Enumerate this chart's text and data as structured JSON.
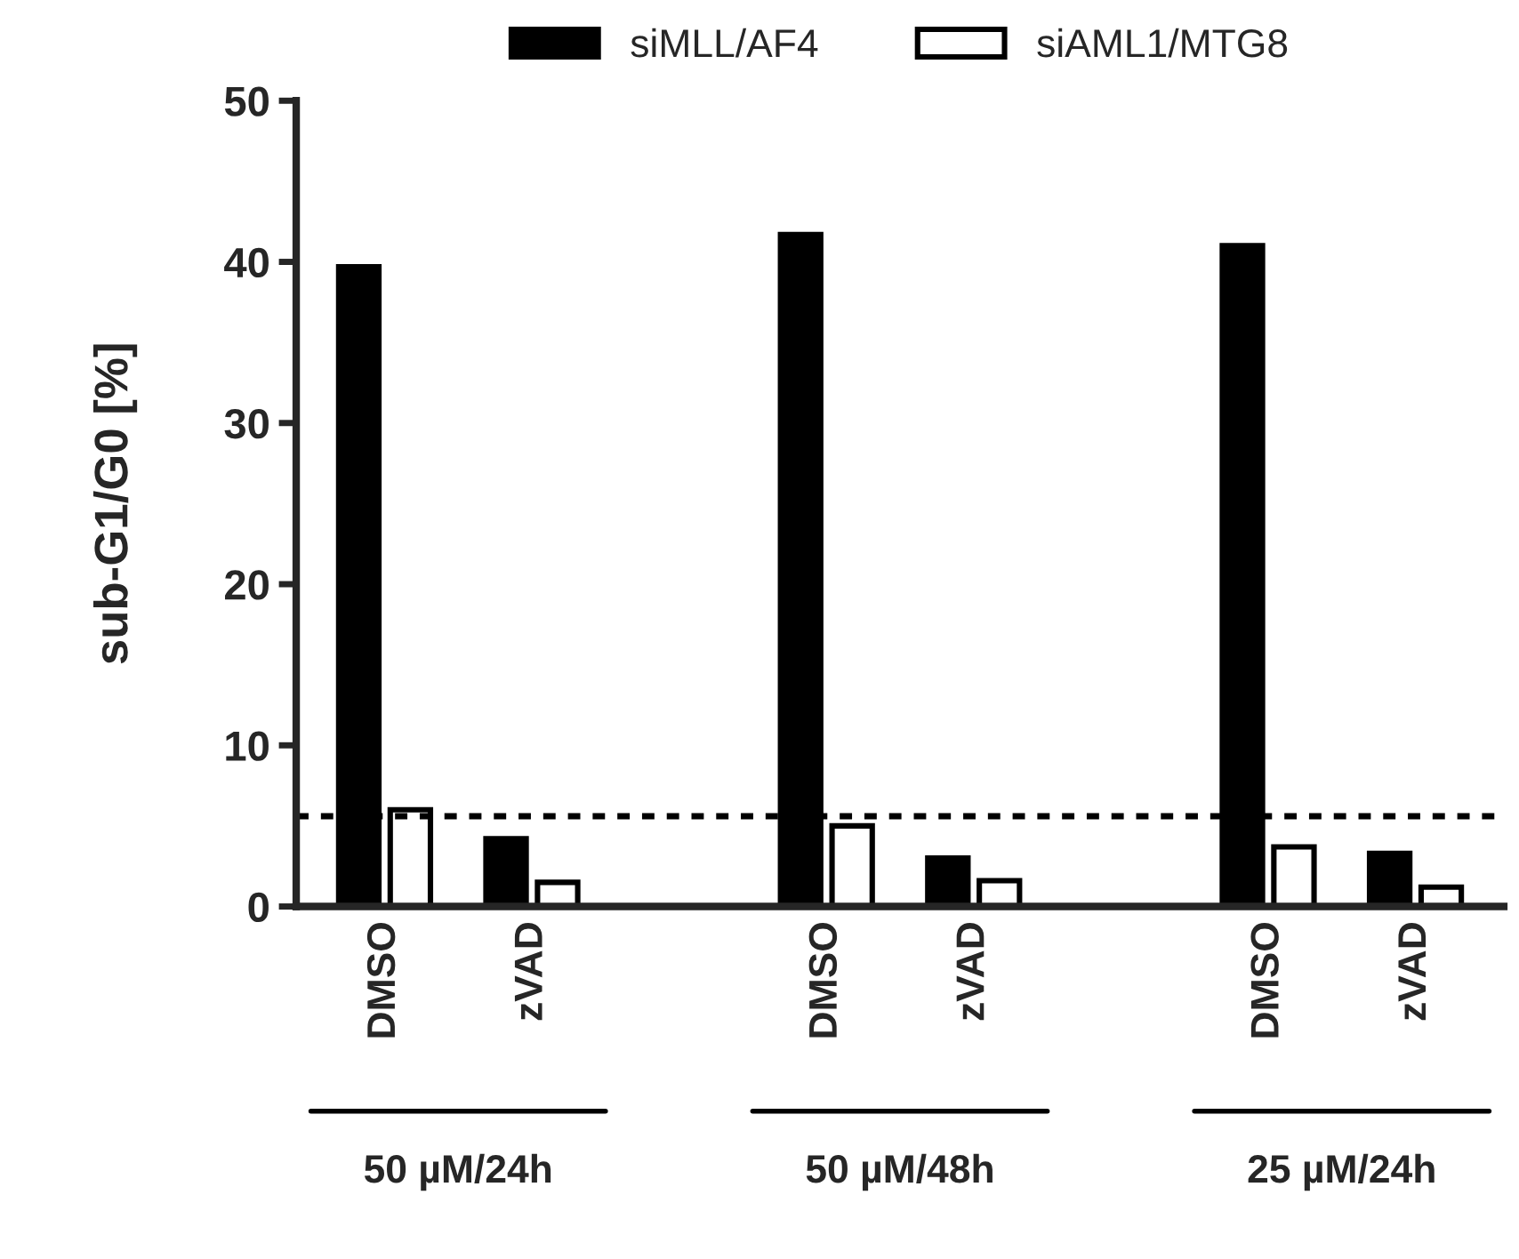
{
  "chart_data": {
    "type": "bar",
    "ylabel": "sub-G1/G0 [%]",
    "categories": [
      "DMSO",
      "zVAD",
      null,
      "DMSO",
      "zVAD",
      null,
      "DMSO",
      "zVAD"
    ],
    "series": [
      {
        "name": "siMLL/AF4",
        "color": "#000000",
        "values": [
          39.7,
          4.2,
          null,
          41.7,
          3.0,
          null,
          41.0,
          3.3
        ]
      },
      {
        "name": "siAML1/MTG8",
        "color": "#ffffff",
        "values": [
          6.0,
          1.5,
          null,
          5.0,
          1.6,
          null,
          3.7,
          1.2
        ]
      }
    ],
    "ylim": [
      0,
      50
    ],
    "yticks": [
      0,
      10,
      20,
      30,
      40,
      50
    ],
    "ref_lines": [
      {
        "axis": "y",
        "value": 5.6,
        "line_style": "dashed",
        "color": "#000000"
      }
    ],
    "annotations": [
      "50 µM/24h",
      "50 µM/48h",
      "25 µM/24h"
    ],
    "legend": "top",
    "grid": false
  }
}
